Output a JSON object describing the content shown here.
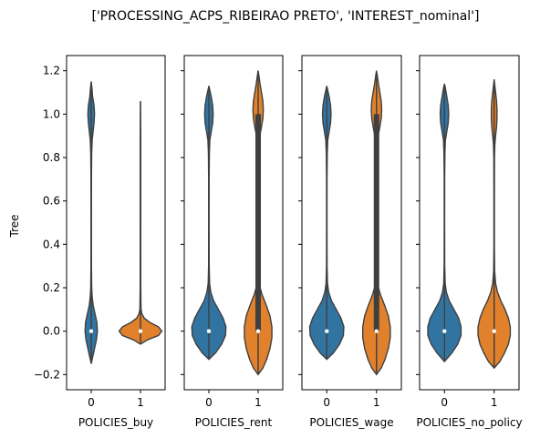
{
  "chart_data": {
    "type": "violin",
    "title": "['PROCESSING_ACPS_RIBEIRAO PRETO', 'INTEREST_nominal']",
    "ylabel": "Tree",
    "ylim": [
      -0.27,
      1.27
    ],
    "yticks": [
      -0.2,
      0.0,
      0.2,
      0.4,
      0.6,
      0.8,
      1.0,
      1.2
    ],
    "ytick_labels": [
      "−0.2",
      "0.0",
      "0.2",
      "0.4",
      "0.6",
      "0.8",
      "1.0",
      "1.2"
    ],
    "categories": [
      "0",
      "1"
    ],
    "colors": {
      "0": "#3274a1",
      "1": "#e1812c"
    },
    "grid": false,
    "legend": "none",
    "panels": [
      {
        "xlabel": "POLICIES_buy",
        "violins": [
          {
            "category": "0",
            "min": -0.15,
            "max": 1.15,
            "median": 0.0,
            "q1": 0.0,
            "q3": 0.0,
            "profile": [
              [
                -0.15,
                0.0
              ],
              [
                -0.12,
                0.03
              ],
              [
                -0.08,
                0.07
              ],
              [
                -0.04,
                0.11
              ],
              [
                0.0,
                0.13
              ],
              [
                0.04,
                0.12
              ],
              [
                0.08,
                0.08
              ],
              [
                0.12,
                0.04
              ],
              [
                0.16,
                0.02
              ],
              [
                0.2,
                0.01
              ],
              [
                0.3,
                0.005
              ],
              [
                0.5,
                0.004
              ],
              [
                0.7,
                0.005
              ],
              [
                0.82,
                0.01
              ],
              [
                0.88,
                0.02
              ],
              [
                0.92,
                0.04
              ],
              [
                0.96,
                0.06
              ],
              [
                1.0,
                0.07
              ],
              [
                1.04,
                0.06
              ],
              [
                1.08,
                0.03
              ],
              [
                1.12,
                0.015
              ],
              [
                1.15,
                0.0
              ]
            ]
          },
          {
            "category": "1",
            "min": -0.06,
            "max": 1.06,
            "median": 0.0,
            "q1": 0.0,
            "q3": 0.0,
            "profile": [
              [
                -0.06,
                0.0
              ],
              [
                -0.04,
                0.15
              ],
              [
                -0.02,
                0.38
              ],
              [
                0.0,
                0.45
              ],
              [
                0.02,
                0.38
              ],
              [
                0.04,
                0.2
              ],
              [
                0.06,
                0.08
              ],
              [
                0.08,
                0.03
              ],
              [
                0.1,
                0.012
              ],
              [
                0.2,
                0.006
              ],
              [
                0.5,
                0.005
              ],
              [
                0.9,
                0.005
              ],
              [
                1.06,
                0.0
              ]
            ]
          }
        ]
      },
      {
        "xlabel": "POLICIES_rent",
        "violins": [
          {
            "category": "0",
            "min": -0.13,
            "max": 1.13,
            "median": 0.0,
            "q1": 0.0,
            "q3": 0.0,
            "profile": [
              [
                -0.13,
                0.0
              ],
              [
                -0.1,
                0.14
              ],
              [
                -0.06,
                0.27
              ],
              [
                -0.02,
                0.35
              ],
              [
                0.02,
                0.36
              ],
              [
                0.06,
                0.3
              ],
              [
                0.1,
                0.2
              ],
              [
                0.14,
                0.1
              ],
              [
                0.18,
                0.04
              ],
              [
                0.22,
                0.015
              ],
              [
                0.3,
                0.006
              ],
              [
                0.5,
                0.004
              ],
              [
                0.7,
                0.005
              ],
              [
                0.82,
                0.01
              ],
              [
                0.88,
                0.02
              ],
              [
                0.92,
                0.05
              ],
              [
                0.96,
                0.08
              ],
              [
                1.0,
                0.09
              ],
              [
                1.04,
                0.08
              ],
              [
                1.08,
                0.05
              ],
              [
                1.11,
                0.02
              ],
              [
                1.13,
                0.0
              ]
            ]
          },
          {
            "category": "1",
            "min": -0.2,
            "max": 1.2,
            "median": 0.0,
            "q1": 0.0,
            "q3": 1.0,
            "profile": [
              [
                -0.2,
                0.0
              ],
              [
                -0.17,
                0.1
              ],
              [
                -0.13,
                0.18
              ],
              [
                -0.08,
                0.25
              ],
              [
                -0.03,
                0.29
              ],
              [
                0.02,
                0.29
              ],
              [
                0.07,
                0.25
              ],
              [
                0.12,
                0.17
              ],
              [
                0.17,
                0.08
              ],
              [
                0.21,
                0.03
              ],
              [
                0.26,
                0.01
              ],
              [
                0.4,
                0.005
              ],
              [
                0.6,
                0.005
              ],
              [
                0.8,
                0.006
              ],
              [
                0.86,
                0.015
              ],
              [
                0.9,
                0.035
              ],
              [
                0.94,
                0.07
              ],
              [
                0.98,
                0.1
              ],
              [
                1.02,
                0.11
              ],
              [
                1.06,
                0.1
              ],
              [
                1.1,
                0.07
              ],
              [
                1.14,
                0.04
              ],
              [
                1.18,
                0.015
              ],
              [
                1.2,
                0.0
              ]
            ]
          }
        ]
      },
      {
        "xlabel": "POLICIES_wage",
        "violins": [
          {
            "category": "0",
            "min": -0.13,
            "max": 1.13,
            "median": 0.0,
            "q1": 0.0,
            "q3": 0.0,
            "profile": [
              [
                -0.13,
                0.0
              ],
              [
                -0.1,
                0.14
              ],
              [
                -0.06,
                0.27
              ],
              [
                -0.02,
                0.35
              ],
              [
                0.02,
                0.36
              ],
              [
                0.06,
                0.3
              ],
              [
                0.1,
                0.2
              ],
              [
                0.14,
                0.1
              ],
              [
                0.18,
                0.04
              ],
              [
                0.22,
                0.015
              ],
              [
                0.3,
                0.006
              ],
              [
                0.5,
                0.004
              ],
              [
                0.7,
                0.005
              ],
              [
                0.82,
                0.01
              ],
              [
                0.88,
                0.02
              ],
              [
                0.92,
                0.05
              ],
              [
                0.96,
                0.08
              ],
              [
                1.0,
                0.09
              ],
              [
                1.04,
                0.08
              ],
              [
                1.08,
                0.05
              ],
              [
                1.11,
                0.02
              ],
              [
                1.13,
                0.0
              ]
            ]
          },
          {
            "category": "1",
            "min": -0.2,
            "max": 1.2,
            "median": 0.0,
            "q1": 0.0,
            "q3": 1.0,
            "profile": [
              [
                -0.2,
                0.0
              ],
              [
                -0.17,
                0.1
              ],
              [
                -0.13,
                0.18
              ],
              [
                -0.08,
                0.25
              ],
              [
                -0.03,
                0.29
              ],
              [
                0.02,
                0.29
              ],
              [
                0.07,
                0.25
              ],
              [
                0.12,
                0.17
              ],
              [
                0.17,
                0.08
              ],
              [
                0.21,
                0.03
              ],
              [
                0.26,
                0.01
              ],
              [
                0.4,
                0.005
              ],
              [
                0.6,
                0.005
              ],
              [
                0.8,
                0.006
              ],
              [
                0.86,
                0.015
              ],
              [
                0.9,
                0.035
              ],
              [
                0.94,
                0.07
              ],
              [
                0.98,
                0.1
              ],
              [
                1.02,
                0.11
              ],
              [
                1.06,
                0.1
              ],
              [
                1.1,
                0.07
              ],
              [
                1.14,
                0.04
              ],
              [
                1.18,
                0.015
              ],
              [
                1.2,
                0.0
              ]
            ]
          }
        ]
      },
      {
        "xlabel": "POLICIES_no_policy",
        "violins": [
          {
            "category": "0",
            "min": -0.14,
            "max": 1.14,
            "median": 0.0,
            "q1": 0.0,
            "q3": 0.0,
            "profile": [
              [
                -0.14,
                0.0
              ],
              [
                -0.1,
                0.16
              ],
              [
                -0.06,
                0.28
              ],
              [
                -0.02,
                0.35
              ],
              [
                0.02,
                0.35
              ],
              [
                0.06,
                0.3
              ],
              [
                0.1,
                0.2
              ],
              [
                0.14,
                0.1
              ],
              [
                0.18,
                0.04
              ],
              [
                0.22,
                0.015
              ],
              [
                0.3,
                0.006
              ],
              [
                0.5,
                0.004
              ],
              [
                0.7,
                0.005
              ],
              [
                0.82,
                0.01
              ],
              [
                0.88,
                0.02
              ],
              [
                0.92,
                0.05
              ],
              [
                0.96,
                0.08
              ],
              [
                1.0,
                0.09
              ],
              [
                1.04,
                0.08
              ],
              [
                1.08,
                0.05
              ],
              [
                1.12,
                0.02
              ],
              [
                1.14,
                0.0
              ]
            ]
          },
          {
            "category": "1",
            "min": -0.17,
            "max": 1.16,
            "median": 0.0,
            "q1": 0.0,
            "q3": 0.0,
            "profile": [
              [
                -0.17,
                0.0
              ],
              [
                -0.14,
                0.12
              ],
              [
                -0.1,
                0.22
              ],
              [
                -0.06,
                0.3
              ],
              [
                -0.02,
                0.34
              ],
              [
                0.02,
                0.34
              ],
              [
                0.06,
                0.3
              ],
              [
                0.1,
                0.23
              ],
              [
                0.14,
                0.14
              ],
              [
                0.18,
                0.07
              ],
              [
                0.22,
                0.03
              ],
              [
                0.28,
                0.01
              ],
              [
                0.4,
                0.005
              ],
              [
                0.6,
                0.005
              ],
              [
                0.8,
                0.007
              ],
              [
                0.86,
                0.015
              ],
              [
                0.9,
                0.03
              ],
              [
                0.94,
                0.05
              ],
              [
                0.98,
                0.06
              ],
              [
                1.02,
                0.06
              ],
              [
                1.06,
                0.05
              ],
              [
                1.1,
                0.03
              ],
              [
                1.14,
                0.01
              ],
              [
                1.16,
                0.0
              ]
            ]
          }
        ]
      }
    ]
  }
}
